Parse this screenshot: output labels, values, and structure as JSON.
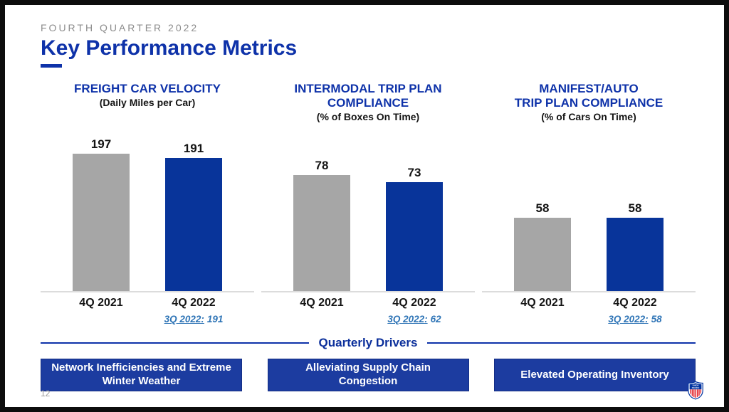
{
  "slide": {
    "eyebrow": "FOURTH QUARTER 2022",
    "title": "Key Performance Metrics",
    "page_number": "12"
  },
  "colors": {
    "brand_blue": "#0e32a9",
    "bar_blue": "#08349a",
    "bar_gray": "#a6a6a6",
    "note_blue": "#2e74b6",
    "driver_box_blue": "#1c3ca0",
    "eyebrow_gray": "#8c8c8c",
    "logo_red": "#e21b23"
  },
  "chart_data": [
    {
      "type": "bar",
      "title": "FREIGHT CAR VELOCITY",
      "title_lines": [
        "FREIGHT CAR VELOCITY"
      ],
      "subtitle": "(Daily Miles per Car)",
      "categories": [
        "4Q 2021",
        "4Q 2022"
      ],
      "values": [
        197,
        191
      ],
      "bar_colors": [
        "#a6a6a6",
        "#08349a"
      ],
      "ylim": [
        0,
        235
      ],
      "grid": false,
      "xlabel": "",
      "ylabel": "",
      "note_label": "3Q 2022:",
      "note_value": "191"
    },
    {
      "type": "bar",
      "title": "INTERMODAL TRIP PLAN COMPLIANCE",
      "title_lines": [
        "INTERMODAL TRIP PLAN",
        "COMPLIANCE"
      ],
      "subtitle": "(% of Boxes On Time)",
      "categories": [
        "4Q 2021",
        "4Q 2022"
      ],
      "values": [
        78,
        73
      ],
      "bar_colors": [
        "#a6a6a6",
        "#08349a"
      ],
      "ylim": [
        0,
        110
      ],
      "grid": false,
      "xlabel": "",
      "ylabel": "",
      "note_label": "3Q 2022:",
      "note_value": "62"
    },
    {
      "type": "bar",
      "title": "MANIFEST/AUTO TRIP PLAN COMPLIANCE",
      "title_lines": [
        "MANIFEST/AUTO",
        "TRIP PLAN COMPLIANCE"
      ],
      "subtitle": "(% of Cars On Time)",
      "categories": [
        "4Q 2021",
        "4Q 2022"
      ],
      "values": [
        58,
        58
      ],
      "bar_colors": [
        "#a6a6a6",
        "#08349a"
      ],
      "ylim": [
        0,
        130
      ],
      "grid": false,
      "xlabel": "",
      "ylabel": "",
      "note_label": "3Q 2022:",
      "note_value": "58"
    }
  ],
  "drivers": {
    "heading": "Quarterly Drivers",
    "items": [
      "Network Inefficiencies and Extreme Winter Weather",
      "Alleviating Supply Chain Congestion",
      "Elevated Operating Inventory"
    ]
  },
  "footer": {
    "logo": "union-pacific-shield-logo"
  }
}
